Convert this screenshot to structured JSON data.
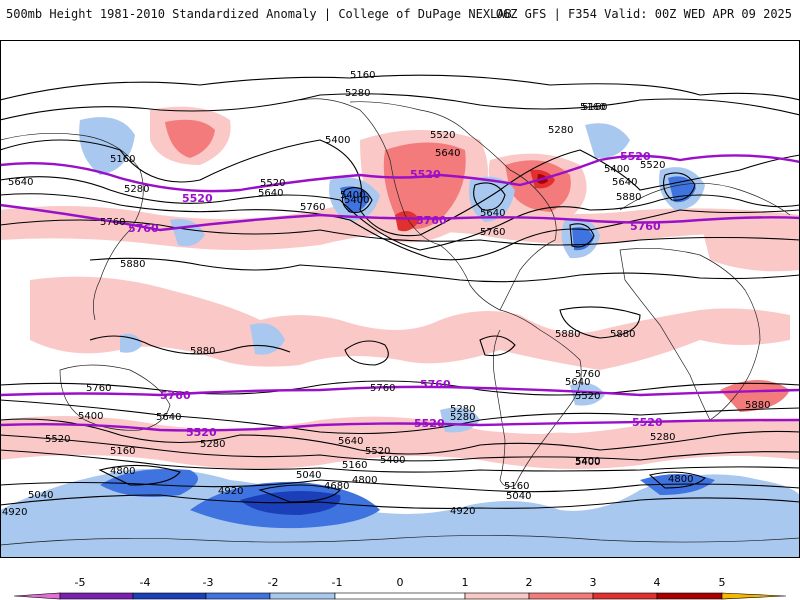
{
  "header": {
    "left_title": "500mb Height 1981-2010 Standardized Anomaly | College of DuPage NEXLAB",
    "right_title": "06Z GFS | F354 Valid: 00Z WED APR 09 2025"
  },
  "colors": {
    "neg5": "#e070d8",
    "neg4": "#7a1fb0",
    "neg3": "#1a3fb8",
    "neg2": "#3f73e0",
    "neg1": "#a8c8f0",
    "neutral": "#ffffff",
    "pos1": "#fbc8c8",
    "pos2": "#f47b7b",
    "pos3": "#e03030",
    "pos4": "#a80000",
    "pos5": "#f6b800",
    "contour": "#000000",
    "highlight_contour": "#9a10c8",
    "coast": "#222222"
  },
  "colorbar": {
    "ticks": [
      "-5",
      "-4",
      "-3",
      "-2",
      "-1",
      "0",
      "1",
      "2",
      "3",
      "4",
      "5"
    ]
  },
  "contour_labels": {
    "black": [
      "5160",
      "5280",
      "5160",
      "5400",
      "5520",
      "5160",
      "5280",
      "5640",
      "5520",
      "5640",
      "5400",
      "5640",
      "5520",
      "5760",
      "5400",
      "5760",
      "5880",
      "5880",
      "5880",
      "5880",
      "5760",
      "5640",
      "5640",
      "5400",
      "5520",
      "5400",
      "5760",
      "5520",
      "5280",
      "5640",
      "5520",
      "5400",
      "5280",
      "5160",
      "4920",
      "5040",
      "5160",
      "4800",
      "4920",
      "4680",
      "4800",
      "5160",
      "5040",
      "4800",
      "4920",
      "5040",
      "5400",
      "5880",
      "5280",
      "5640",
      "5280",
      "5880",
      "5760",
      "5640",
      "5160",
      "5280",
      "5760",
      "5400"
    ],
    "magenta": [
      "5520",
      "5520",
      "5520",
      "5760",
      "5760",
      "5760",
      "5760",
      "5760",
      "5520",
      "5520",
      "5520"
    ]
  }
}
